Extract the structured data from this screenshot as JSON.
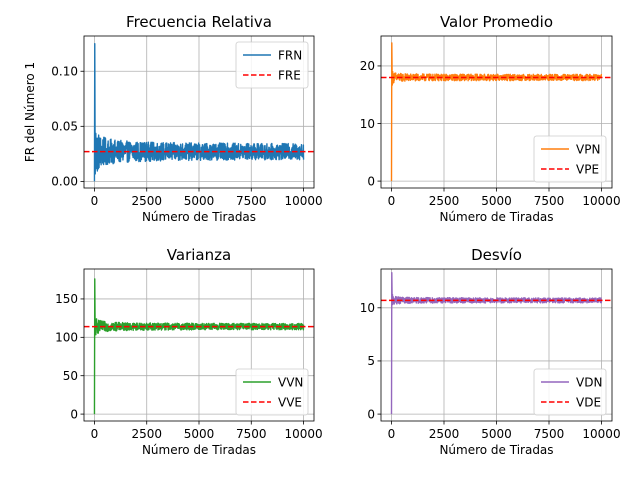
{
  "chart_data": [
    {
      "type": "line",
      "title": "Frecuencia Relativa",
      "xlabel": "Número de Tiradas",
      "ylabel": "FR del Número 1",
      "xlim": [
        -500,
        10500
      ],
      "ylim": [
        -0.006,
        0.132
      ],
      "x_ticks": [
        0,
        2500,
        5000,
        7500,
        10000
      ],
      "y_ticks": [
        0.0,
        0.05,
        0.1
      ],
      "y_tick_labels": [
        "0.00",
        "0.05",
        "0.10"
      ],
      "grid": true,
      "legend_position": "upper right",
      "series": [
        {
          "name": "FRN",
          "style": "noisy",
          "color": "#1f77b4",
          "expected": 0.027,
          "spike": [
            0.125,
            0.0
          ],
          "decay": 0.25,
          "band": 0.006
        },
        {
          "name": "FRE",
          "style": "dashed-hline",
          "color": "#ff0000",
          "value": 0.027
        }
      ]
    },
    {
      "type": "line",
      "title": "Valor Promedio",
      "xlabel": "Número de Tiradas",
      "ylabel": "",
      "xlim": [
        -500,
        10500
      ],
      "ylim": [
        -1.2,
        25.2
      ],
      "x_ticks": [
        0,
        2500,
        5000,
        7500,
        10000
      ],
      "y_ticks": [
        0,
        10,
        20
      ],
      "y_tick_labels": [
        "0",
        "10",
        "20"
      ],
      "grid": true,
      "legend_position": "lower right",
      "series": [
        {
          "name": "VPN",
          "style": "noisy",
          "color": "#ff7f0e",
          "expected": 18,
          "spike": [
            24,
            0
          ],
          "decay": 0.12,
          "band": 0.5
        },
        {
          "name": "VPE",
          "style": "dashed-hline",
          "color": "#ff0000",
          "value": 18
        }
      ]
    },
    {
      "type": "line",
      "title": "Varianza",
      "xlabel": "Número de Tiradas",
      "ylabel": "",
      "xlim": [
        -500,
        10500
      ],
      "ylim": [
        -9,
        189
      ],
      "x_ticks": [
        0,
        2500,
        5000,
        7500,
        10000
      ],
      "y_ticks": [
        0,
        50,
        100,
        150
      ],
      "y_tick_labels": [
        "0",
        "50",
        "100",
        "150"
      ],
      "grid": true,
      "legend_position": "lower right",
      "series": [
        {
          "name": "VVN",
          "style": "noisy",
          "color": "#2ca02c",
          "expected": 114,
          "spike": [
            176,
            0
          ],
          "decay": 0.18,
          "band": 3.5
        },
        {
          "name": "VVE",
          "style": "dashed-hline",
          "color": "#ff0000",
          "value": 114
        }
      ]
    },
    {
      "type": "line",
      "title": "Desvío",
      "xlabel": "Número de Tiradas",
      "ylabel": "",
      "xlim": [
        -500,
        10500
      ],
      "ylim": [
        -0.65,
        13.65
      ],
      "x_ticks": [
        0,
        2500,
        5000,
        7500,
        10000
      ],
      "y_ticks": [
        0,
        5,
        10
      ],
      "y_tick_labels": [
        "0",
        "5",
        "10"
      ],
      "grid": true,
      "legend_position": "lower right",
      "series": [
        {
          "name": "VDN",
          "style": "noisy",
          "color": "#9467bd",
          "expected": 10.7,
          "spike": [
            13.3,
            0
          ],
          "decay": 0.12,
          "band": 0.22
        },
        {
          "name": "VDE",
          "style": "dashed-hline",
          "color": "#ff0000",
          "value": 10.7
        }
      ]
    }
  ]
}
